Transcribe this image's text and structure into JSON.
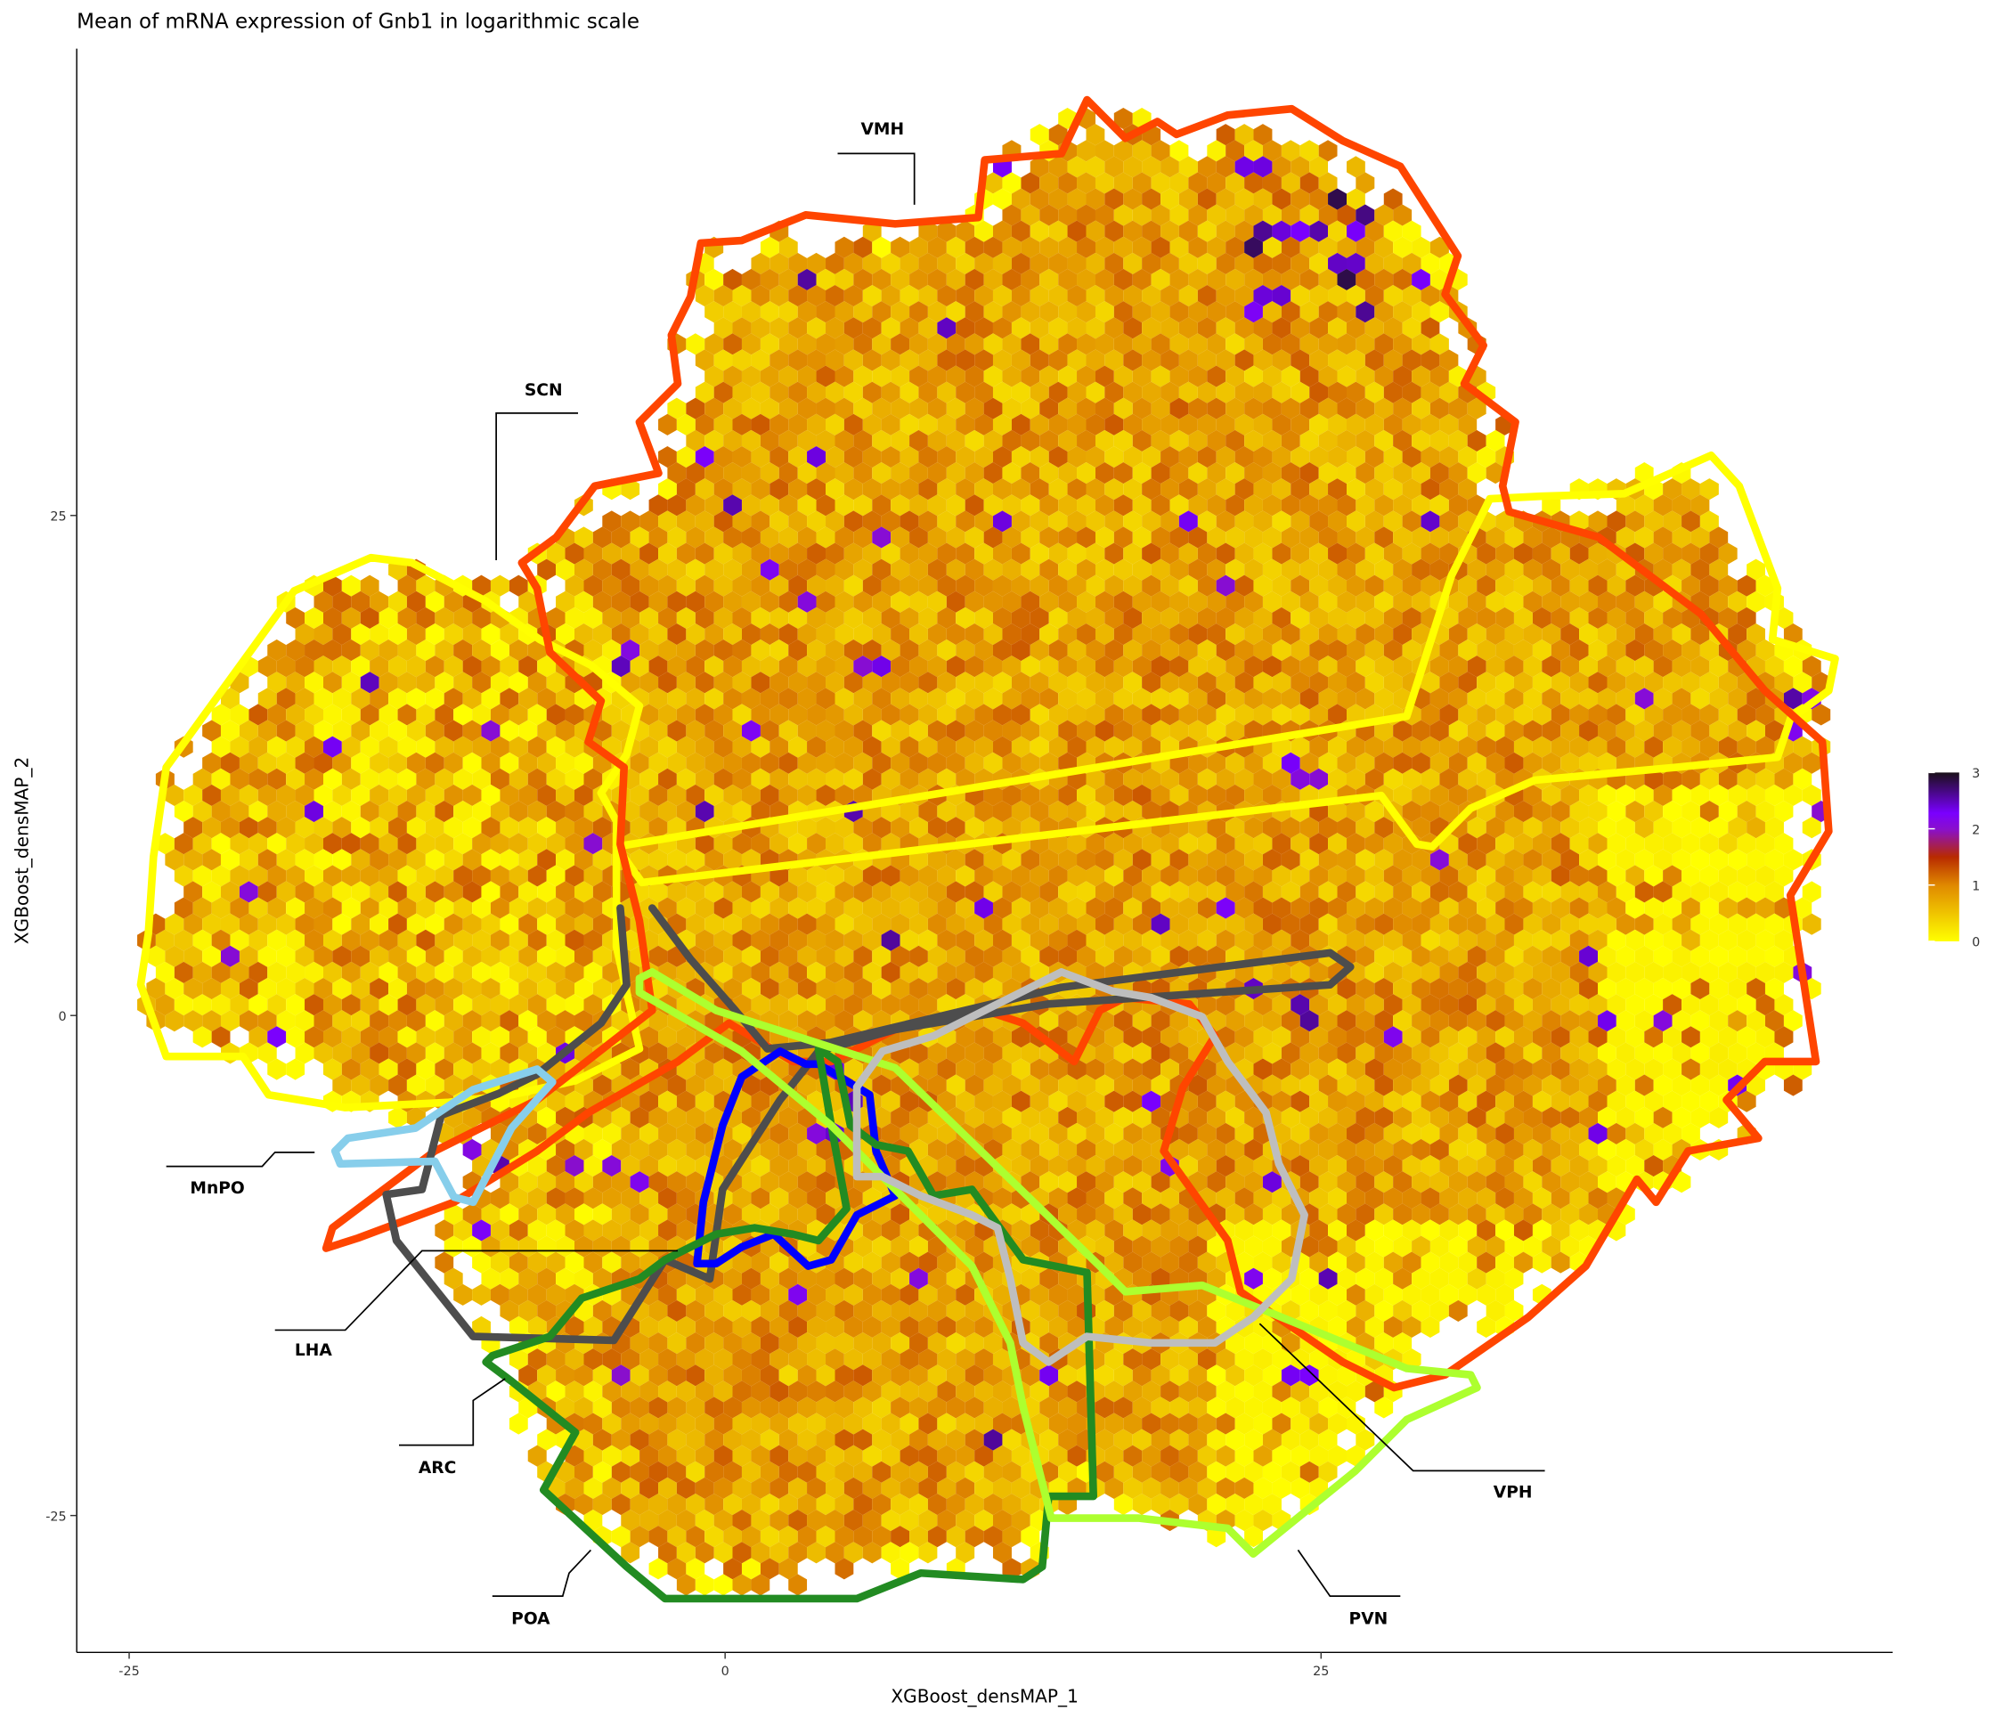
{
  "chart_data": {
    "type": "heatmap",
    "subtype": "hexbin",
    "title": "Mean of mRNA expression of Gnb1 in logarithmic scale",
    "xlabel": "XGBoost_densMAP_1",
    "ylabel": "XGBoost_densMAP_2",
    "xticks": [
      -25,
      0,
      25
    ],
    "yticks": [
      25,
      0,
      -25
    ],
    "xlim": [
      -27,
      49
    ],
    "ylim": [
      -32,
      48
    ],
    "grid": false,
    "colorbar": {
      "range": [
        0,
        3
      ],
      "ticks": [
        0,
        1,
        2,
        3
      ],
      "colors": [
        "#FFFF00",
        "#E08A00",
        "#B82A00",
        "#8A10C8",
        "#7A00FF",
        "#1A1018"
      ],
      "placement": "right"
    },
    "regions": [
      {
        "name": "VMH",
        "color": "#FF4500"
      },
      {
        "name": "SCN",
        "color": "#FFFF00"
      },
      {
        "name": "MnPO",
        "color": "#87CEEB"
      },
      {
        "name": "LHA",
        "color": "#4D4D4D"
      },
      {
        "name": "ARC",
        "color": "#0000FF"
      },
      {
        "name": "POA",
        "color": "#228B22"
      },
      {
        "name": "PVN",
        "color": "#ADFF2F"
      },
      {
        "name": "VPH",
        "color": "#BEBEBE"
      }
    ]
  }
}
